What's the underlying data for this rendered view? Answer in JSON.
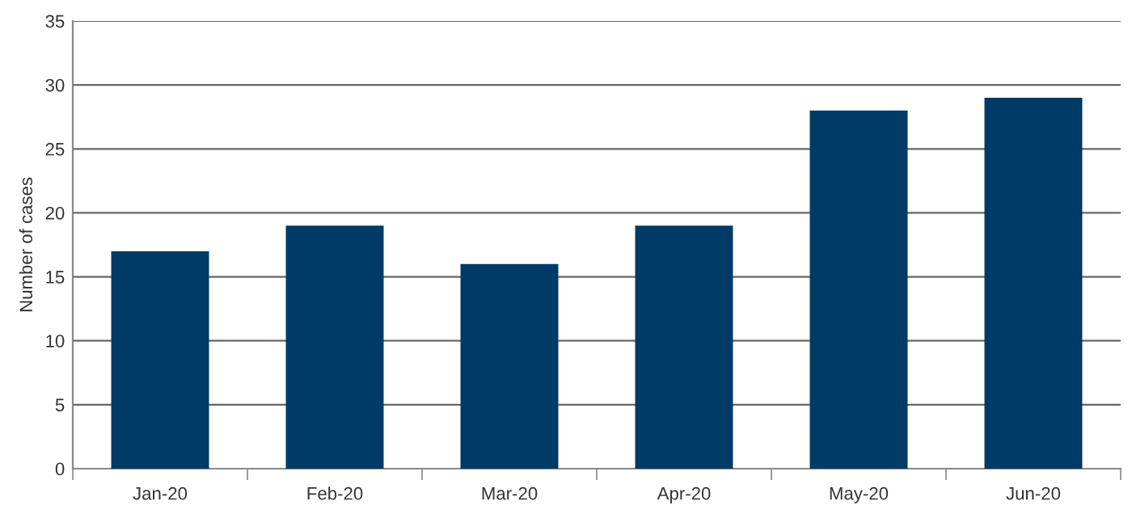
{
  "chart_data": {
    "type": "bar",
    "ylabel": "Number of cases",
    "categories": [
      "Jan-20",
      "Feb-20",
      "Mar-20",
      "Apr-20",
      "May-20",
      "Jun-20"
    ],
    "values": [
      17,
      19,
      16,
      19,
      28,
      29
    ],
    "color": "#003a66",
    "ylim": [
      0,
      35
    ],
    "yticks": [
      0,
      5,
      10,
      15,
      20,
      25,
      30,
      35
    ],
    "grid": "y"
  }
}
